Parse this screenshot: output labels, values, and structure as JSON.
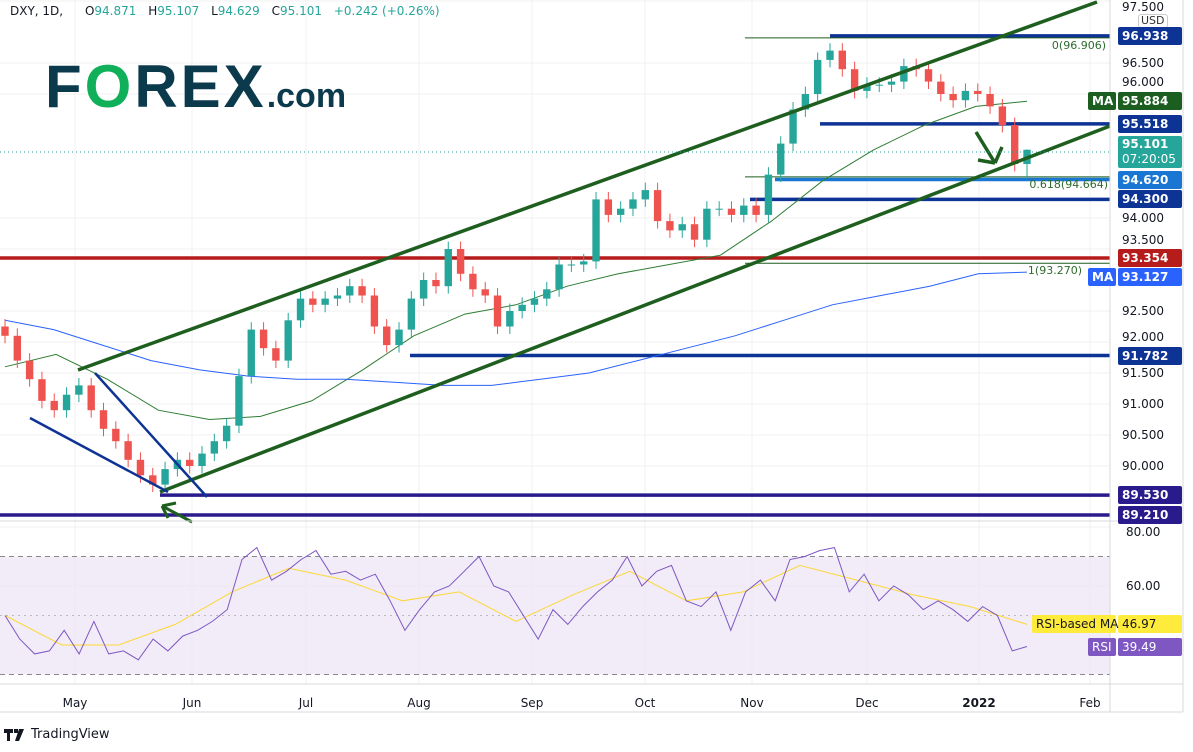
{
  "header": {
    "symbol": "DXY, 1D,",
    "open_label": "O",
    "open": "94.871",
    "high_label": "H",
    "high": "95.107",
    "low_label": "L",
    "low": "94.629",
    "close_label": "C",
    "close": "95.101",
    "change": "+0.242 (+0.26%)"
  },
  "logo": {
    "text_f": "F",
    "text_o": "O",
    "text_rex": "REX",
    "text_com": ".com"
  },
  "currency": "USD",
  "footer": {
    "brand": "TradingView"
  },
  "colors": {
    "up": "#26a69a",
    "down": "#ef5350",
    "channel": "#1e5e1e",
    "level": "#0d3394",
    "red_level": "#b71c1c",
    "ma50": "#2e7d32",
    "ma200": "#2962ff",
    "rsi": "#7e57c2",
    "rsi_ma": "#fdd835"
  },
  "chart_data": {
    "type": "candlestick",
    "symbol": "DXY",
    "interval": "1D",
    "ylim": [
      89.0,
      97.5
    ],
    "y_ticks": [
      "97.500",
      "96.500",
      "96.000",
      "94.000",
      "93.500",
      "92.500",
      "92.000",
      "91.500",
      "91.000",
      "90.500",
      "90.000"
    ],
    "x_ticks": [
      "May",
      "Jun",
      "Jul",
      "Aug",
      "Sep",
      "Oct",
      "Nov",
      "Dec",
      "2022",
      "Feb"
    ],
    "closes": [
      92.1,
      91.7,
      91.4,
      91.05,
      90.9,
      91.15,
      91.3,
      90.9,
      90.6,
      90.4,
      90.1,
      89.85,
      89.7,
      89.95,
      90.1,
      90.0,
      90.2,
      90.4,
      90.65,
      91.45,
      92.2,
      91.9,
      91.7,
      92.35,
      92.7,
      92.6,
      92.7,
      92.75,
      92.9,
      92.75,
      92.25,
      91.95,
      92.2,
      92.7,
      93.0,
      92.9,
      93.5,
      93.1,
      92.85,
      92.75,
      92.25,
      92.5,
      92.6,
      92.7,
      92.85,
      93.25,
      93.25,
      93.3,
      94.3,
      94.05,
      94.15,
      94.3,
      94.45,
      93.95,
      93.8,
      93.9,
      93.65,
      94.15,
      94.15,
      94.05,
      94.2,
      94.05,
      94.7,
      95.2,
      95.75,
      96.0,
      96.55,
      96.7,
      96.4,
      96.05,
      96.15,
      96.15,
      96.2,
      96.45,
      96.4,
      96.2,
      96.0,
      95.9,
      96.05,
      96.0,
      95.8,
      95.5,
      94.871
    ],
    "last_candle": {
      "open": 94.871,
      "high": 95.107,
      "low": 94.629,
      "close": 95.101
    },
    "ma50": {
      "label": "MA",
      "value": "95.884",
      "values": [
        91.6,
        91.8,
        91.4,
        90.9,
        90.75,
        90.8,
        91.05,
        91.55,
        92.1,
        92.45,
        92.6,
        92.9,
        93.1,
        93.25,
        93.4,
        93.95,
        94.6,
        95.1,
        95.5,
        95.8,
        95.884
      ]
    },
    "ma200": {
      "label": "MA",
      "value": "93.127",
      "values": [
        92.35,
        92.2,
        91.95,
        91.7,
        91.55,
        91.45,
        91.4,
        91.4,
        91.35,
        91.3,
        91.3,
        91.4,
        91.5,
        91.7,
        91.9,
        92.1,
        92.35,
        92.6,
        92.75,
        92.9,
        93.1,
        93.127
      ]
    },
    "levels": [
      {
        "value": 96.938,
        "label": "96.938"
      },
      {
        "value": 95.518,
        "label": "95.518"
      },
      {
        "value": 94.62,
        "label": "94.620"
      },
      {
        "value": 94.3,
        "label": "94.300"
      },
      {
        "value": 93.354,
        "label": "93.354"
      },
      {
        "value": 91.782,
        "label": "91.782"
      },
      {
        "value": 89.53,
        "label": "89.530"
      },
      {
        "value": 89.21,
        "label": "89.210"
      }
    ],
    "fib": [
      {
        "level": "0",
        "value": 96.906,
        "label": "0(96.906)"
      },
      {
        "level": "0.618",
        "value": 94.664,
        "label": "0.618(94.664)"
      },
      {
        "level": "1",
        "value": 93.27,
        "label": "1(93.270)"
      }
    ],
    "last_price": {
      "value": "95.101",
      "countdown": "07:20:05"
    },
    "rsi": {
      "label": "RSI",
      "value": "39.49",
      "ma_label": "RSI-based MA",
      "ma_value": "46.97",
      "ylim": [
        20,
        80
      ],
      "bands": [
        70,
        50,
        30
      ],
      "y_ticks": [
        "80.00",
        "60.00"
      ],
      "values": [
        50,
        42,
        37,
        38,
        45,
        37,
        48,
        37,
        38,
        35,
        42,
        38,
        43,
        45,
        48,
        52,
        69,
        73,
        62,
        65,
        69,
        72,
        64,
        65,
        62,
        64,
        55,
        45,
        52,
        58,
        60,
        65,
        70,
        60,
        58,
        50,
        42,
        52,
        47,
        53,
        58,
        62,
        70,
        60,
        65,
        67,
        55,
        53,
        58,
        45,
        58,
        62,
        55,
        69,
        70,
        72,
        73,
        58,
        64,
        55,
        60,
        57,
        52,
        55,
        52,
        48,
        53,
        50,
        38,
        39.49
      ],
      "ma_values": [
        50,
        40,
        40,
        47,
        58,
        66,
        62,
        55,
        58,
        48,
        57,
        65,
        55,
        58,
        67,
        62,
        57,
        53,
        46.97
      ]
    }
  }
}
